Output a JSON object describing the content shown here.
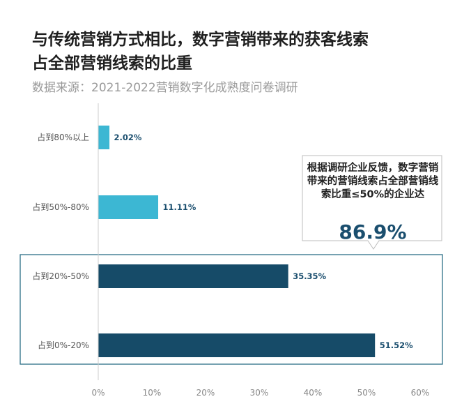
{
  "title_line1": "与传统营销方式相比，数字营销带来的获客线索",
  "title_line2": "占全部营销线索的比重",
  "subtitle": "数据来源：2021-2022营销数字化成熟度问卷调研",
  "callout": {
    "text": "根据调研企业反馈，数字营销带来的营销线索占全部营销线索比重≤50%的企业达",
    "value": "86.9%"
  },
  "colors": {
    "light": "#3cb7d3",
    "dark": "#164b68",
    "frame": "#2c6f87",
    "axis": "#cccccc"
  },
  "chart_data": {
    "type": "bar",
    "orientation": "horizontal",
    "categories": [
      "占到80%以上",
      "占到50%-80%",
      "占到20%-50%",
      "占到0%-20%"
    ],
    "values": [
      2.02,
      11.11,
      35.35,
      51.52
    ],
    "value_labels": [
      "2.02%",
      "11.11%",
      "35.35%",
      "51.52%"
    ],
    "bar_colors": [
      "#3cb7d3",
      "#3cb7d3",
      "#164b68",
      "#164b68"
    ],
    "xlim": [
      0,
      60
    ],
    "xticks": [
      "0%",
      "10%",
      "20%",
      "30%",
      "40%",
      "50%",
      "60%"
    ],
    "grid": false,
    "highlight": [
      "占到20%-50%",
      "占到0%-20%"
    ]
  }
}
